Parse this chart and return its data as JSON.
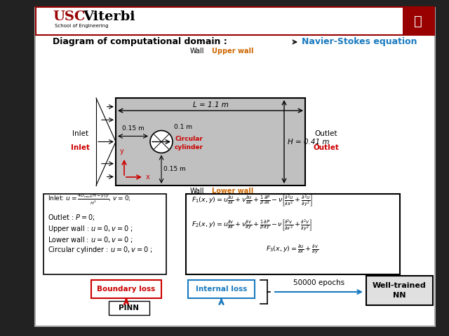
{
  "bg_outer": "#222222",
  "slide_bg": "#ffffff",
  "header_border": "#990000",
  "dark_red": "#990000",
  "red_color": "#cc0000",
  "blue_color": "#1a7abf",
  "orange_color": "#cc6600",
  "gray_domain": "#c0c0c0",
  "title_text": "Diagram of computational domain :",
  "ns_text": "Navier-Stokes equation",
  "L_label": "L = 1.1 m",
  "H_label": "H = 0.41 m",
  "d015_left": "0.15 m",
  "d01": "0.1 m",
  "d015_bot": "0.15 m"
}
